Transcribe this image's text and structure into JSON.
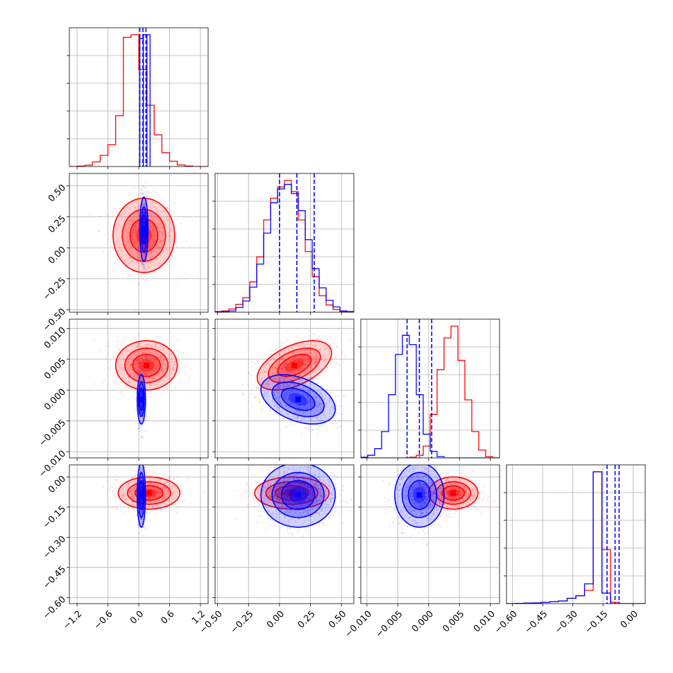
{
  "chart_data": {
    "type": "corner",
    "colors": {
      "series_a": "#ff0000",
      "series_b": "#0000ff",
      "grid": "#b0b0b0",
      "axis": "#000000"
    },
    "grid": true,
    "parameters": [
      {
        "range": [
          -1.35,
          1.35
        ],
        "ticks": [
          -1.2,
          -0.6,
          0.0,
          0.6,
          1.2
        ],
        "tick_labels": [
          "−1.2",
          "−0.6",
          "0.0",
          "0.6",
          "1.2"
        ]
      },
      {
        "range": [
          -0.52,
          0.6
        ],
        "ticks": [
          -0.5,
          -0.25,
          0.0,
          0.25,
          0.5
        ],
        "tick_labels": [
          "−0.50",
          "−0.25",
          "0.00",
          "0.25",
          "0.50"
        ]
      },
      {
        "range": [
          -0.011,
          0.0115
        ],
        "ticks": [
          -0.01,
          -0.005,
          0.0,
          0.005,
          0.01
        ],
        "tick_labels": [
          "−0.010",
          "−0.005",
          "0.000",
          "0.005",
          "0.010"
        ]
      },
      {
        "range": [
          -0.63,
          0.06
        ],
        "ticks": [
          -0.6,
          -0.45,
          -0.3,
          -0.15,
          0.0
        ],
        "tick_labels": [
          "−0.60",
          "−0.45",
          "−0.30",
          "−0.15",
          "0.00"
        ]
      }
    ],
    "histograms": [
      {
        "bins": [
          -1.35,
          1.35
        ],
        "series": [
          {
            "name": "",
            "color": "#ff0000",
            "values": [
              0,
              0.003,
              0.01,
              0.035,
              0.085,
              0.165,
              0.385,
              0.98,
              1.0,
              0.735,
              0.465,
              0.24,
              0.105,
              0.04,
              0.012,
              0.004,
              0,
              0
            ]
          },
          {
            "name": "",
            "color": "#0000ff",
            "bars": [
              [
                0.02,
                0.09,
                0.97
              ],
              [
                0.09,
                0.16,
                1.0
              ],
              [
                0.16,
                0.22,
                1.0
              ]
            ]
          }
        ],
        "quantiles": [
          0.02,
          0.08,
          0.14
        ]
      },
      {
        "series": [
          {
            "name": "",
            "color": "#ff0000",
            "values": [
              0.005,
              0.01,
              0.025,
              0.06,
              0.11,
              0.23,
              0.42,
              0.7,
              0.865,
              0.95,
              1.0,
              0.915,
              0.7,
              0.46,
              0.27,
              0.125,
              0.055,
              0.02,
              0.005,
              0
            ]
          },
          {
            "name": "",
            "color": "#0000ff",
            "values": [
              0.002,
              0.005,
              0.01,
              0.035,
              0.085,
              0.19,
              0.365,
              0.6,
              0.83,
              0.935,
              0.97,
              0.9,
              0.77,
              0.55,
              0.33,
              0.185,
              0.09,
              0.04,
              0.01,
              0.005
            ]
          }
        ],
        "quantiles": [
          0.0,
          0.14,
          0.28
        ]
      },
      {
        "series": [
          {
            "name": "",
            "color": "#ff0000",
            "values": [
              0,
              0,
              0,
              0,
              0,
              0,
              0,
              0.005,
              0.02,
              0.09,
              0.33,
              0.67,
              0.91,
              1.0,
              0.74,
              0.44,
              0.2,
              0.06,
              0.01,
              0
            ]
          },
          {
            "name": "",
            "color": "#0000ff",
            "values": [
              0.005,
              0.02,
              0.07,
              0.2,
              0.48,
              0.785,
              0.93,
              0.86,
              0.48,
              0.18,
              0.05,
              0.01,
              0,
              0,
              0,
              0,
              0,
              0,
              0,
              0
            ]
          }
        ],
        "quantiles": [
          -0.0035,
          -0.0015,
          0.0005
        ]
      },
      {
        "series": [
          {
            "name": "",
            "color": "#ff0000",
            "values": [
              0,
              0.002,
              0.004,
              0.005,
              0.01,
              0.015,
              0.02,
              0.04,
              0.06,
              0.1,
              1.0,
              0.41,
              0.01,
              0,
              0,
              0
            ]
          },
          {
            "name": "",
            "color": "#0000ff",
            "values": [
              0,
              0.002,
              0.004,
              0.005,
              0.01,
              0.015,
              0.02,
              0.04,
              0.06,
              0.15,
              1.0,
              0.08,
              0,
              0,
              0,
              0
            ]
          }
        ],
        "quantiles": [
          -0.13,
          -0.09,
          -0.07
        ]
      }
    ],
    "pairs": [
      {
        "row": 1,
        "col": 0,
        "red": {
          "center": [
            0.1,
            0.1
          ],
          "sigma": [
            0.3,
            0.15
          ]
        },
        "blue": {
          "center": [
            0.1,
            0.15
          ],
          "sigma": [
            0.04,
            0.13
          ]
        }
      },
      {
        "row": 2,
        "col": 0,
        "red": {
          "center": [
            0.15,
            0.004
          ],
          "sigma": [
            0.3,
            0.002
          ]
        },
        "blue": {
          "center": [
            0.05,
            -0.0015
          ],
          "sigma": [
            0.04,
            0.002
          ]
        }
      },
      {
        "row": 2,
        "col": 1,
        "red": {
          "center": [
            0.12,
            0.004
          ],
          "sigma": [
            0.15,
            0.002
          ],
          "rho": 0.5
        },
        "blue": {
          "center": [
            0.15,
            -0.0015
          ],
          "sigma": [
            0.15,
            0.002
          ],
          "rho": -0.4
        }
      },
      {
        "row": 3,
        "col": 0,
        "red": {
          "center": [
            0.2,
            -0.08
          ],
          "sigma": [
            0.3,
            0.04
          ]
        },
        "blue": {
          "center": [
            0.05,
            -0.09
          ],
          "sigma": [
            0.04,
            0.08
          ]
        }
      },
      {
        "row": 3,
        "col": 1,
        "red": {
          "center": [
            0.1,
            -0.08
          ],
          "sigma": [
            0.15,
            0.04
          ]
        },
        "blue": {
          "center": [
            0.15,
            -0.09
          ],
          "sigma": [
            0.15,
            0.08
          ]
        }
      },
      {
        "row": 3,
        "col": 2,
        "red": {
          "center": [
            0.004,
            -0.08
          ],
          "sigma": [
            0.002,
            0.04
          ]
        },
        "blue": {
          "center": [
            -0.0015,
            -0.09
          ],
          "sigma": [
            0.002,
            0.08
          ]
        }
      }
    ]
  }
}
